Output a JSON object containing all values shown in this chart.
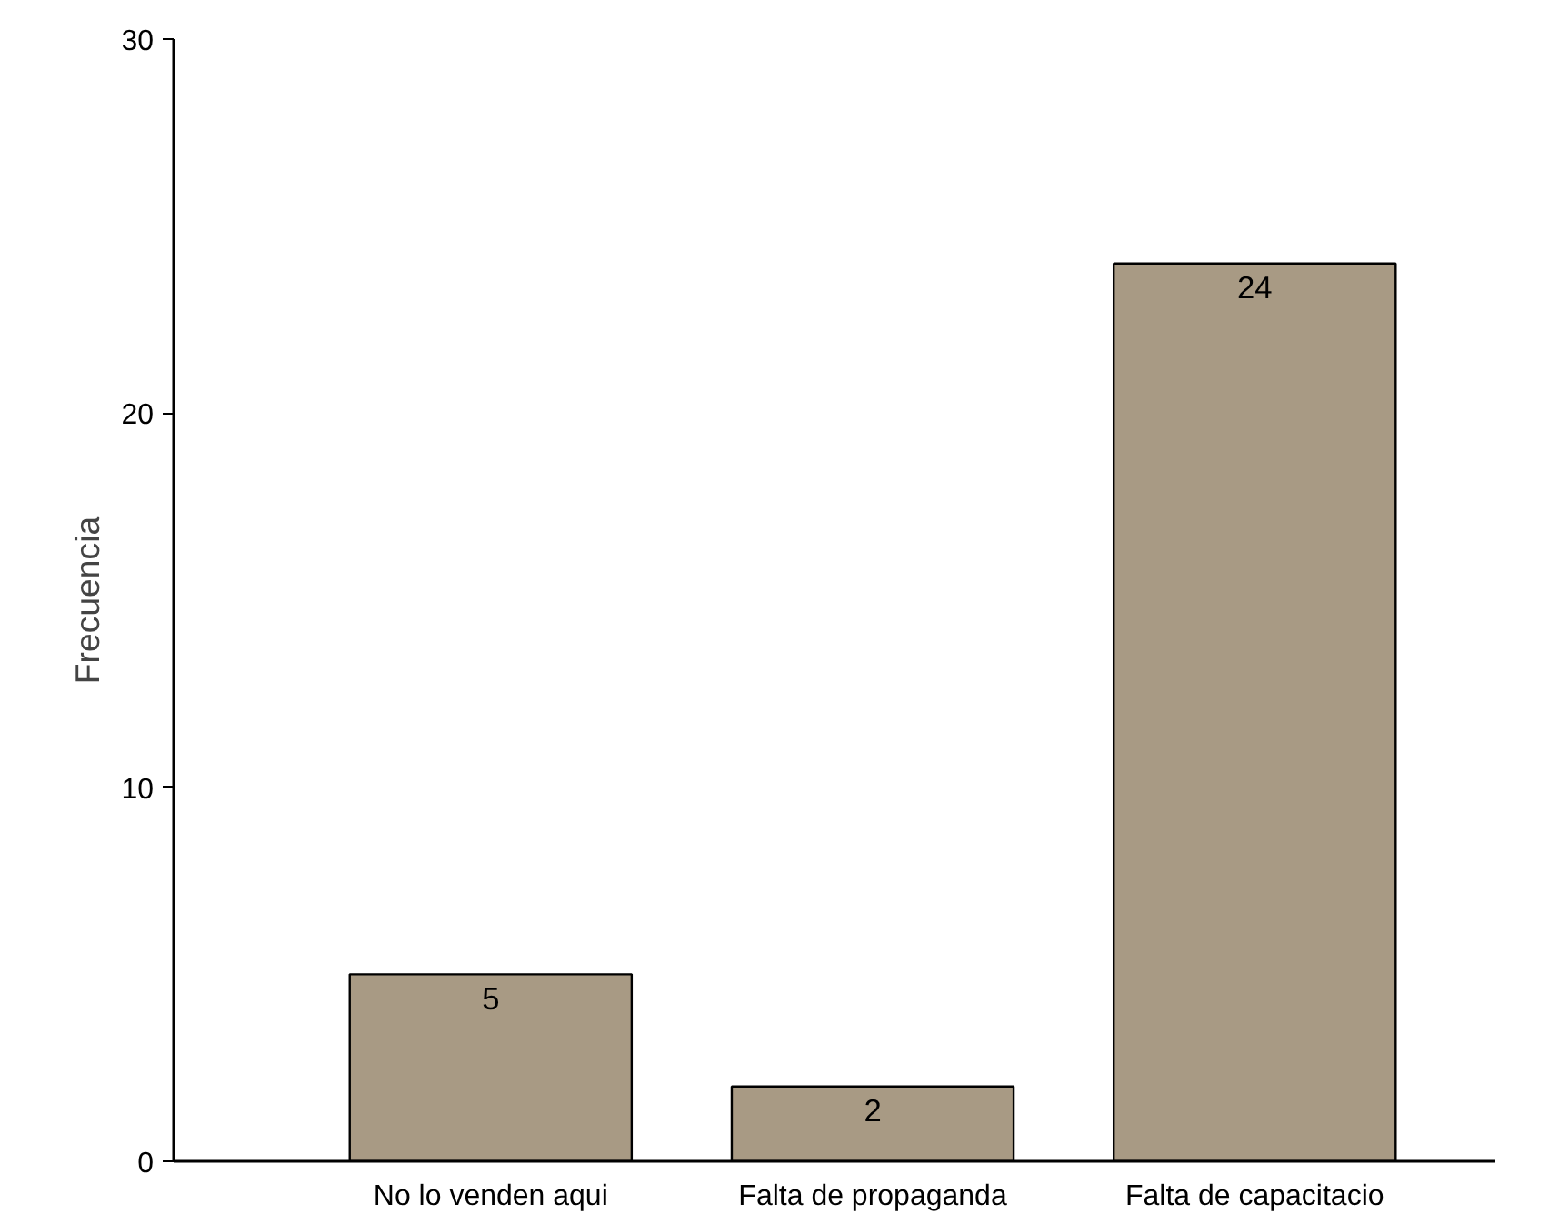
{
  "chart_data": {
    "type": "bar",
    "ylabel": "Frecuencia",
    "categories": [
      "No lo venden aqui",
      "Falta de propaganda",
      "Falta de capacitacio"
    ],
    "values": [
      5,
      2,
      24
    ],
    "color": "#a89a84",
    "ylim": [
      0,
      30
    ],
    "yticks": [
      0,
      10,
      20,
      30
    ],
    "data_labels": true
  }
}
